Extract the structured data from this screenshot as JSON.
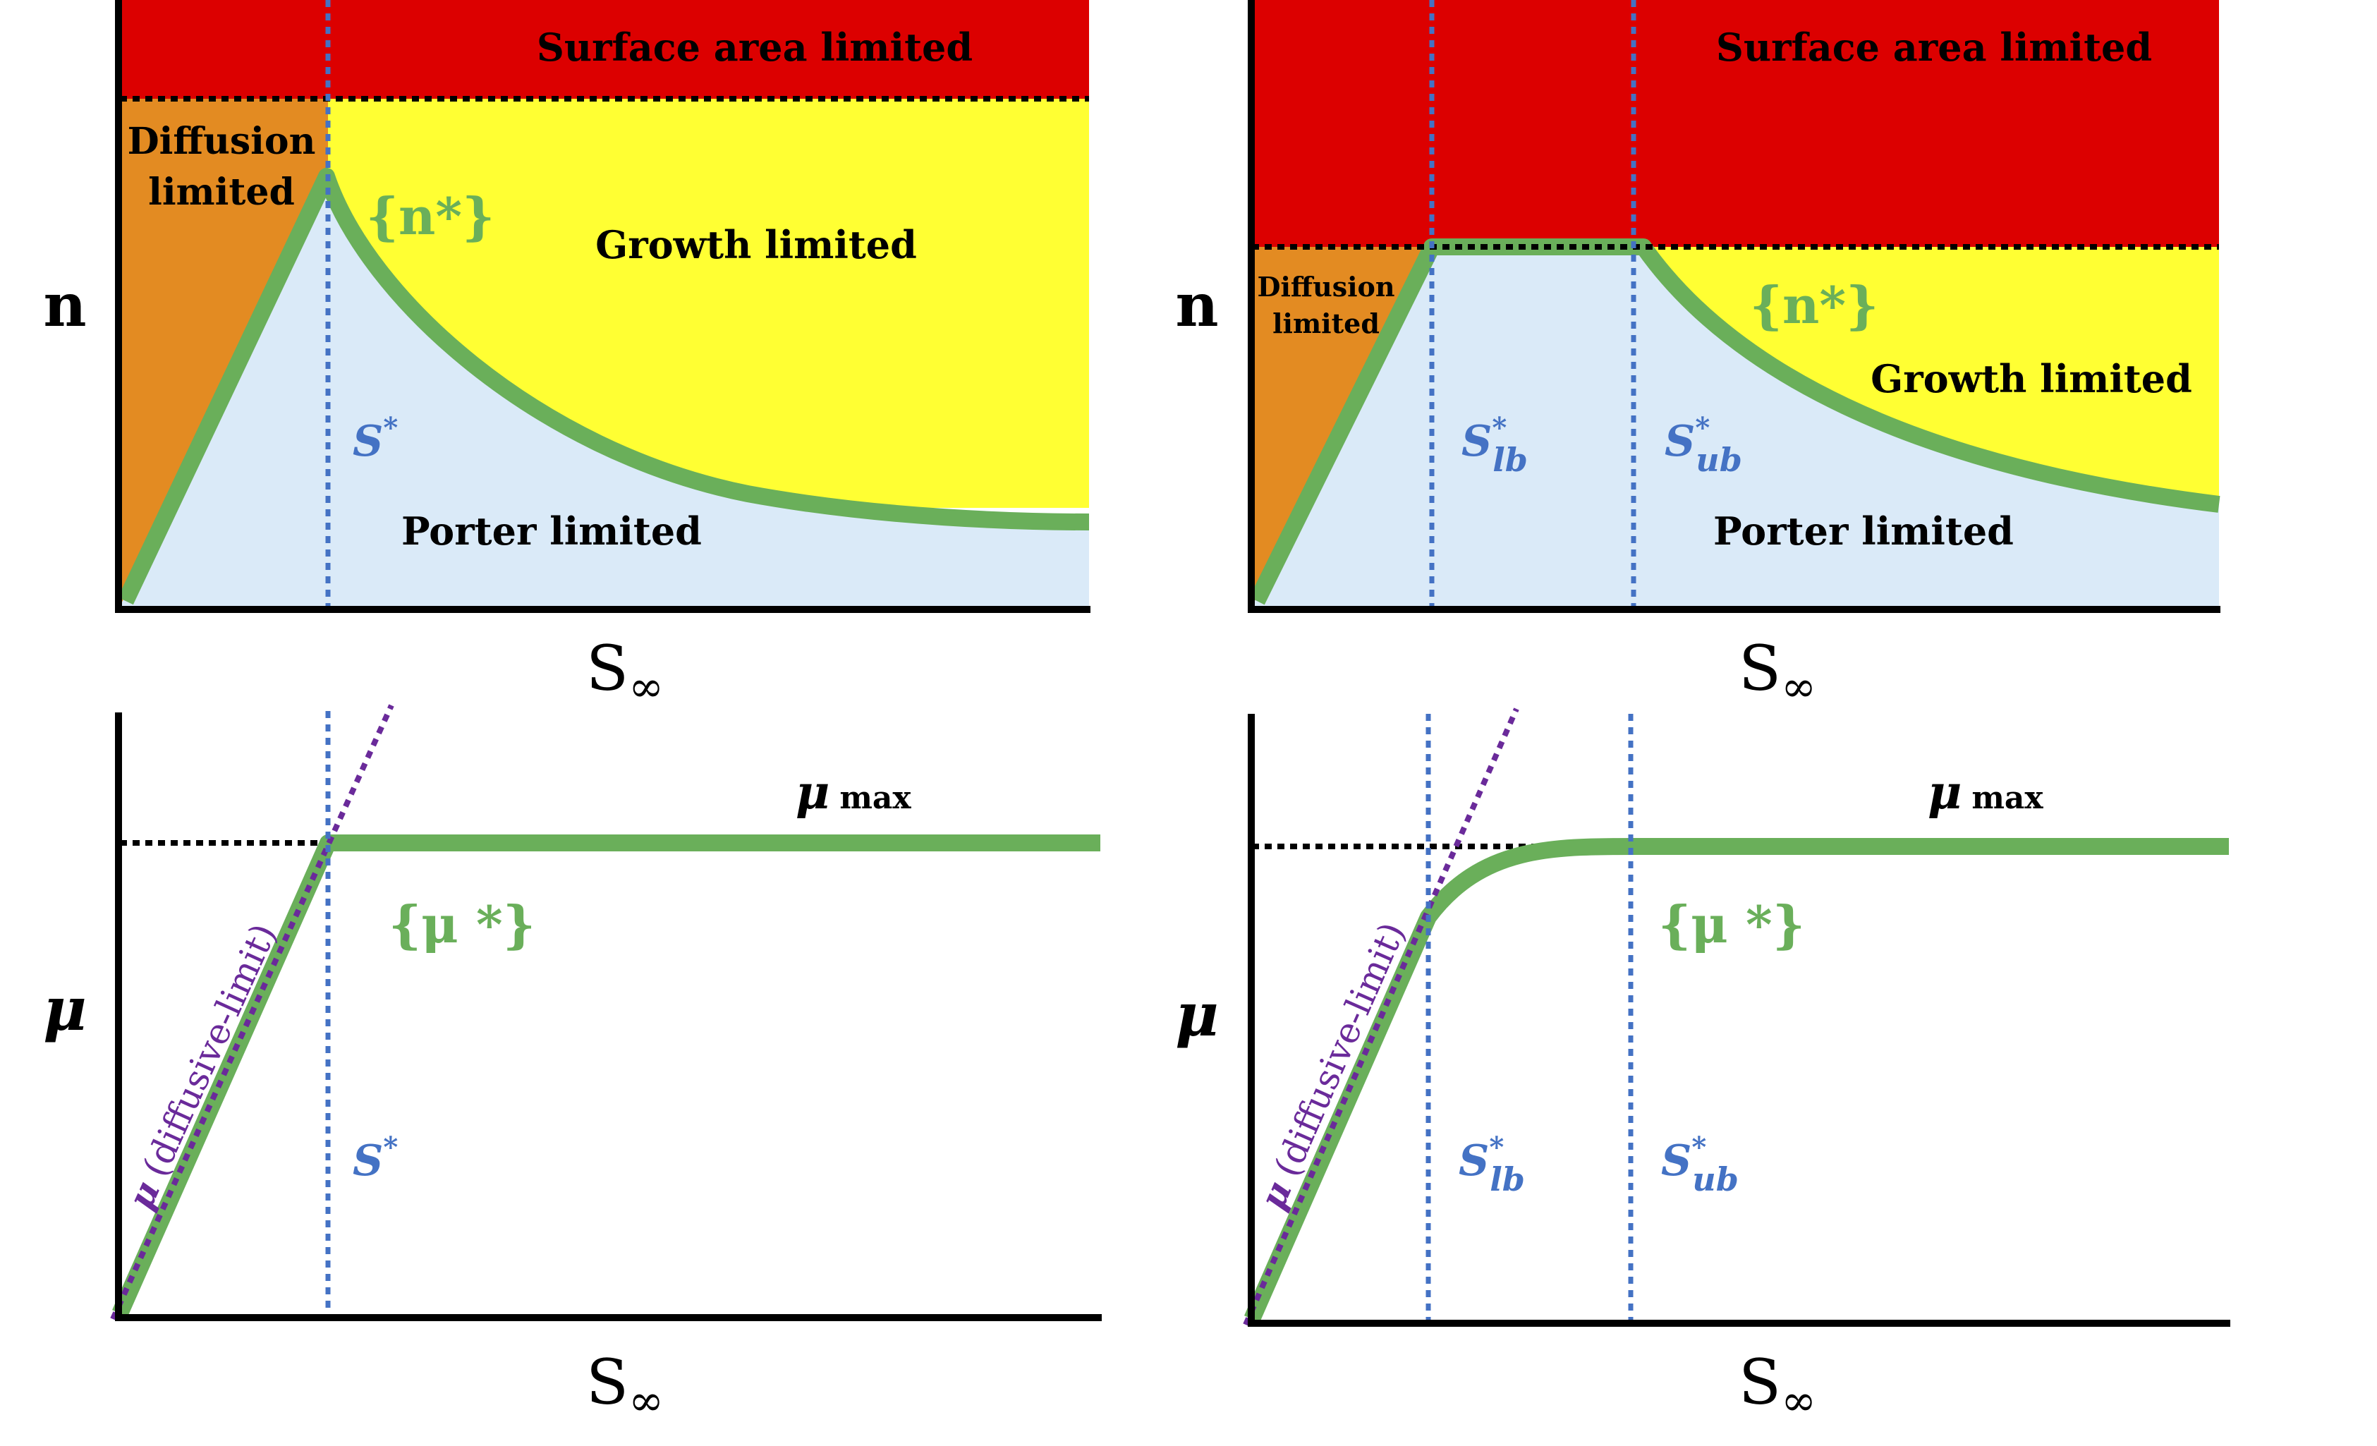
{
  "colors": {
    "surface": "#dc0000",
    "growth": "#ffff33",
    "diffusion": "#e38b22",
    "porter": "#daeaf8",
    "curve": "#6aaf5a",
    "guide": "#4472c4",
    "limit": "#6a2a9a",
    "axis": "#000000",
    "text_green": "#6aaf5a",
    "text_blue": "#4472c4",
    "text_purple": "#6a2a9a"
  },
  "panels": {
    "top_left": {
      "ylabel": "n",
      "xlabel": "S",
      "xlabel_sub": "∞",
      "surface_label": "Surface area limited",
      "diffusion_label_1": "Diffusion",
      "diffusion_label_2": "limited",
      "growth_label": "Growth limited",
      "porter_label": "Porter limited",
      "curve_label": "{n*}",
      "s_label": "S",
      "s_sup": "*"
    },
    "top_right": {
      "ylabel": "n",
      "xlabel": "S",
      "xlabel_sub": "∞",
      "surface_label": "Surface area limited",
      "diffusion_label_1": "Diffusion",
      "diffusion_label_2": "limited",
      "growth_label": "Growth limited",
      "porter_label": "Porter limited",
      "curve_label": "{n*}",
      "s_lb_label": "S",
      "s_lb_sup": "*",
      "s_lb_sub": "lb",
      "s_ub_label": "S",
      "s_ub_sup": "*",
      "s_ub_sub": "ub"
    },
    "bottom_left": {
      "ylabel": "μ",
      "xlabel": "S",
      "xlabel_sub": "∞",
      "max_label": "μ",
      "max_sub": "max",
      "curve_label": "{μ *}",
      "limit_mu": "μ",
      "limit_text": "(diffusive-limit)",
      "s_label": "S",
      "s_sup": "*"
    },
    "bottom_right": {
      "ylabel": "μ",
      "xlabel": "S",
      "xlabel_sub": "∞",
      "max_label": "μ",
      "max_sub": "max",
      "curve_label": "{μ *}",
      "limit_mu": "μ",
      "limit_text": "(diffusive-limit)",
      "s_lb_label": "S",
      "s_lb_sup": "*",
      "s_lb_sub": "lb",
      "s_ub_label": "S",
      "s_ub_sup": "*",
      "s_ub_sub": "ub"
    }
  }
}
